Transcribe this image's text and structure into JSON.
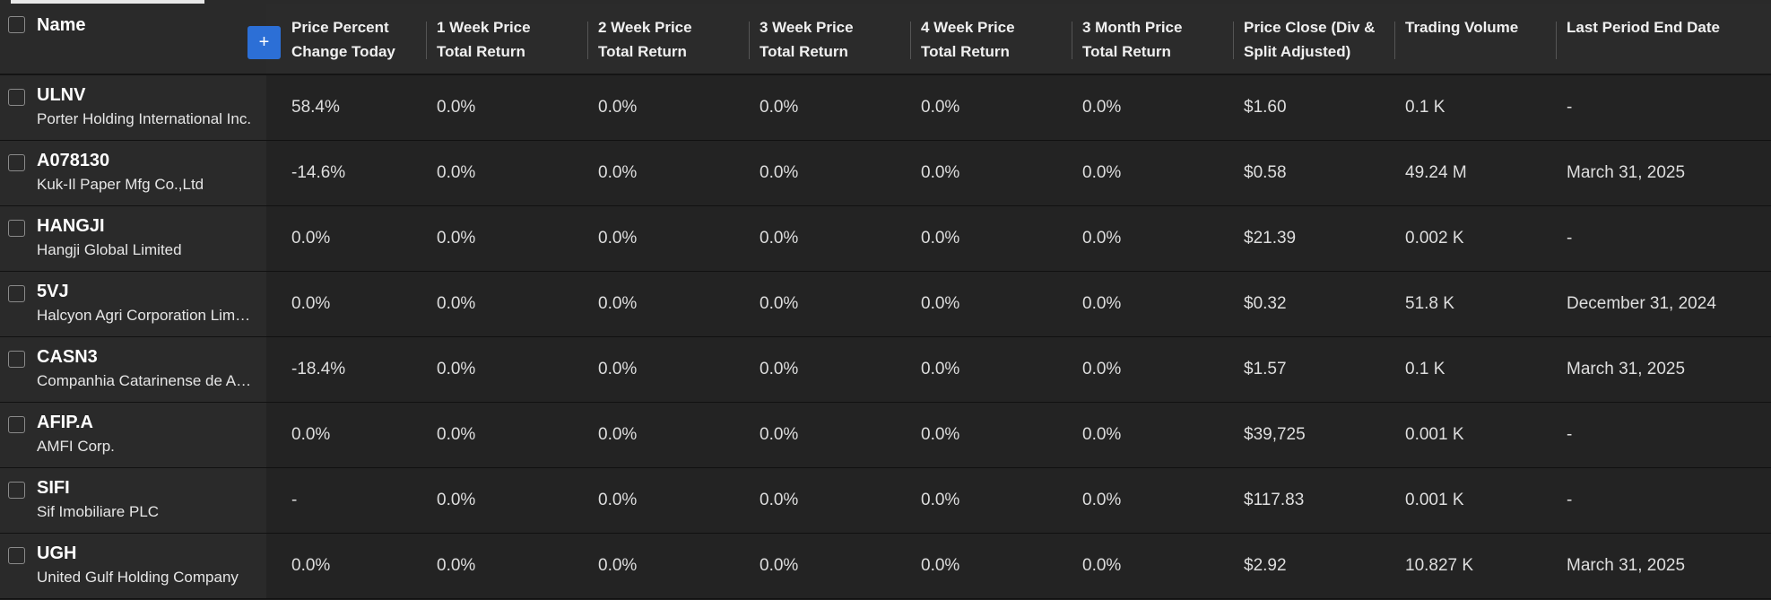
{
  "header": {
    "name_label": "Name",
    "add_column_label": "+",
    "columns": [
      {
        "line1": "Price Percent",
        "line2": "Change Today"
      },
      {
        "line1": "1 Week Price",
        "line2": "Total Return"
      },
      {
        "line1": "2 Week Price",
        "line2": "Total Return"
      },
      {
        "line1": "3 Week Price",
        "line2": "Total Return"
      },
      {
        "line1": "4 Week Price",
        "line2": "Total Return"
      },
      {
        "line1": "3 Month Price",
        "line2": "Total Return"
      },
      {
        "line1": "Price Close (Div &",
        "line2": "Split Adjusted)"
      },
      {
        "line1": "Trading Volume",
        "line2": ""
      },
      {
        "line1": "Last Period End Date",
        "line2": ""
      }
    ]
  },
  "rows": [
    {
      "ticker": "ULNV",
      "company": "Porter Holding International Inc.",
      "values": [
        "58.4%",
        "0.0%",
        "0.0%",
        "0.0%",
        "0.0%",
        "0.0%",
        "$1.60",
        "0.1 K",
        "-"
      ]
    },
    {
      "ticker": "A078130",
      "company": "Kuk-Il Paper Mfg Co.,Ltd",
      "values": [
        "-14.6%",
        "0.0%",
        "0.0%",
        "0.0%",
        "0.0%",
        "0.0%",
        "$0.58",
        "49.24 M",
        "March 31, 2025"
      ]
    },
    {
      "ticker": "HANGJI",
      "company": "Hangji Global Limited",
      "values": [
        "0.0%",
        "0.0%",
        "0.0%",
        "0.0%",
        "0.0%",
        "0.0%",
        "$21.39",
        "0.002 K",
        "-"
      ]
    },
    {
      "ticker": "5VJ",
      "company": "Halcyon Agri Corporation Limited",
      "values": [
        "0.0%",
        "0.0%",
        "0.0%",
        "0.0%",
        "0.0%",
        "0.0%",
        "$0.32",
        "51.8 K",
        "December 31, 2024"
      ]
    },
    {
      "ticker": "CASN3",
      "company": "Companhia Catarinense de Aguas",
      "values": [
        "-18.4%",
        "0.0%",
        "0.0%",
        "0.0%",
        "0.0%",
        "0.0%",
        "$1.57",
        "0.1 K",
        "March 31, 2025"
      ]
    },
    {
      "ticker": "AFIP.A",
      "company": "AMFI Corp.",
      "values": [
        "0.0%",
        "0.0%",
        "0.0%",
        "0.0%",
        "0.0%",
        "0.0%",
        "$39,725",
        "0.001 K",
        "-"
      ]
    },
    {
      "ticker": "SIFI",
      "company": "Sif Imobiliare PLC",
      "values": [
        "-",
        "0.0%",
        "0.0%",
        "0.0%",
        "0.0%",
        "0.0%",
        "$117.83",
        "0.001 K",
        "-"
      ]
    },
    {
      "ticker": "UGH",
      "company": "United Gulf Holding Company",
      "values": [
        "0.0%",
        "0.0%",
        "0.0%",
        "0.0%",
        "0.0%",
        "0.0%",
        "$2.92",
        "10.827 K",
        "March 31, 2025"
      ]
    }
  ],
  "colors": {
    "background": "#1e1e1e",
    "header_background": "#2b2b2b",
    "accent_button": "#2c6fd6"
  }
}
